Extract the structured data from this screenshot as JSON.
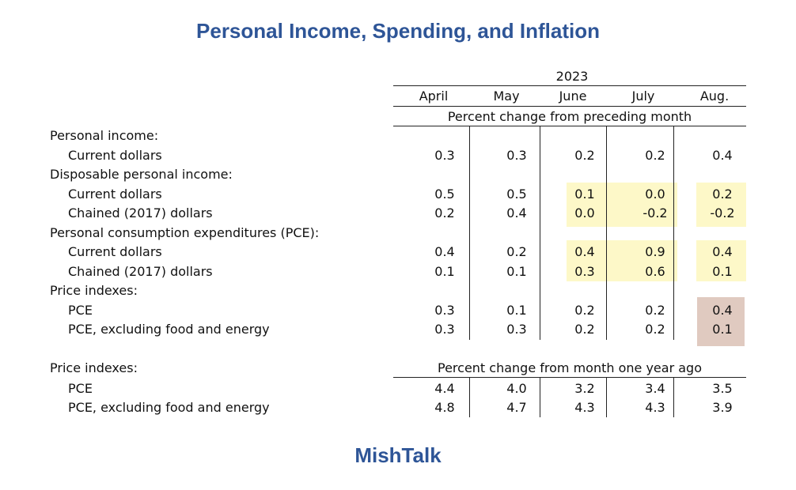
{
  "title": "Personal Income, Spending, and Inflation",
  "brand": "MishTalk",
  "year": "2023",
  "months": [
    "April",
    "May",
    "June",
    "July",
    "Aug."
  ],
  "section1_header": "Percent change from preceding month",
  "section2_header": "Percent change from month one year ago",
  "colors": {
    "title": "#2e5597",
    "yellow_highlight": "#fdf8c8",
    "pink_highlight": "#e0cac0"
  },
  "section1_rows": [
    {
      "label": "Personal income:",
      "indent": false,
      "values": []
    },
    {
      "label": "Current dollars",
      "indent": true,
      "values": [
        "0.3",
        "0.3",
        "0.2",
        "0.2",
        "0.4"
      ]
    },
    {
      "label": "Disposable personal income:",
      "indent": false,
      "values": []
    },
    {
      "label": "Current dollars",
      "indent": true,
      "values": [
        "0.5",
        "0.5",
        "0.1",
        "0.0",
        "0.2"
      ]
    },
    {
      "label": "Chained (2017) dollars",
      "indent": true,
      "values": [
        "0.2",
        "0.4",
        "0.0",
        "-0.2",
        "-0.2"
      ]
    },
    {
      "label": "Personal consumption expenditures (PCE):",
      "indent": false,
      "values": []
    },
    {
      "label": "Current dollars",
      "indent": true,
      "values": [
        "0.4",
        "0.2",
        "0.4",
        "0.9",
        "0.4"
      ]
    },
    {
      "label": "Chained (2017) dollars",
      "indent": true,
      "values": [
        "0.1",
        "0.1",
        "0.3",
        "0.6",
        "0.1"
      ]
    },
    {
      "label": "Price indexes:",
      "indent": false,
      "values": []
    },
    {
      "label": "PCE",
      "indent": true,
      "values": [
        "0.3",
        "0.1",
        "0.2",
        "0.2",
        "0.4"
      ]
    },
    {
      "label": "PCE, excluding food and energy",
      "indent": true,
      "values": [
        "0.3",
        "0.3",
        "0.2",
        "0.2",
        "0.1"
      ]
    }
  ],
  "section2_label": "Price indexes:",
  "section2_rows": [
    {
      "label": "PCE",
      "values": [
        "4.4",
        "4.0",
        "3.2",
        "3.4",
        "3.5"
      ]
    },
    {
      "label": "PCE, excluding food and energy",
      "values": [
        "4.8",
        "4.7",
        "4.3",
        "4.3",
        "3.9"
      ]
    }
  ]
}
